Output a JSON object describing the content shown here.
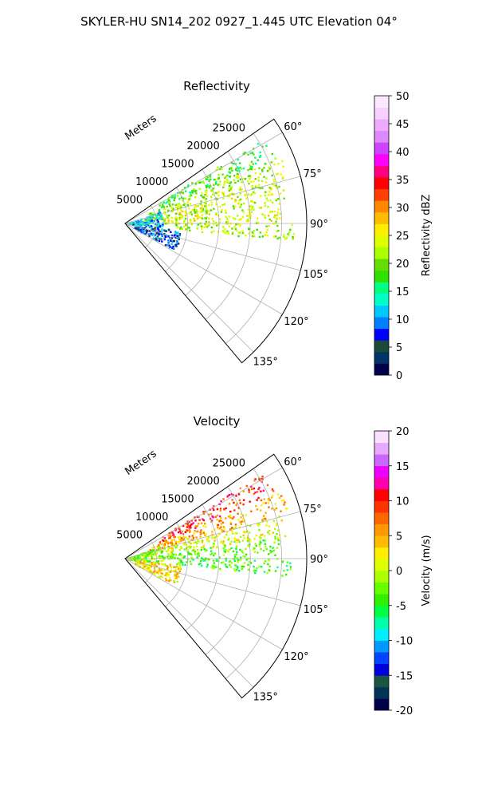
{
  "figure": {
    "title": "SKYLER-HU  SN14_202  0927_1.445 UTC Elevation 04°"
  },
  "chart_data": [
    {
      "type": "heatmap",
      "projection": "polar-sector",
      "title": "Reflectivity",
      "radial_label": "Meters",
      "radial_ticks": [
        "5000",
        "10000",
        "15000",
        "20000",
        "25000"
      ],
      "angular_ticks": [
        "60°",
        "75°",
        "90°",
        "105°",
        "120°",
        "135°"
      ],
      "theta_range_deg": [
        55,
        140
      ],
      "r_range_m": [
        0,
        29000
      ],
      "grid": true,
      "colorbar": {
        "label": "Reflectivity dBZ",
        "range": [
          0,
          50
        ],
        "ticks": [
          "0",
          "5",
          "10",
          "15",
          "20",
          "25",
          "30",
          "35",
          "40",
          "45",
          "50"
        ],
        "colors": [
          "#00004c",
          "#003366",
          "#1a4a3a",
          "#0000ff",
          "#0080ff",
          "#00c8ff",
          "#00ffc8",
          "#00ff80",
          "#30e000",
          "#66dd00",
          "#aaff00",
          "#ddff00",
          "#ffee00",
          "#ffbb00",
          "#ff8800",
          "#ff4000",
          "#ff0000",
          "#ff0080",
          "#ff00ff",
          "#cc44ff",
          "#dd88ff",
          "#eeaaff",
          "#f6d0ff",
          "#fbe8ff"
        ]
      },
      "echo_regions": [
        {
          "theta": [
            58,
            66
          ],
          "r": [
            6000,
            26000
          ],
          "value": 18
        },
        {
          "theta": [
            66,
            74
          ],
          "r": [
            4000,
            27000
          ],
          "value": 22
        },
        {
          "theta": [
            74,
            82
          ],
          "r": [
            3000,
            26000
          ],
          "value": 23
        },
        {
          "theta": [
            82,
            90
          ],
          "r": [
            6000,
            25000
          ],
          "value": 24
        },
        {
          "theta": [
            90,
            96
          ],
          "r": [
            8000,
            27000
          ],
          "value": 22
        },
        {
          "theta": [
            70,
            96
          ],
          "r": [
            500,
            6000
          ],
          "value": 12
        },
        {
          "theta": [
            96,
            118
          ],
          "r": [
            1500,
            9000
          ],
          "value": 8
        }
      ]
    },
    {
      "type": "heatmap",
      "projection": "polar-sector",
      "title": "Velocity",
      "radial_label": "Meters",
      "radial_ticks": [
        "5000",
        "10000",
        "15000",
        "20000",
        "25000"
      ],
      "angular_ticks": [
        "60°",
        "75°",
        "90°",
        "105°",
        "120°",
        "135°"
      ],
      "theta_range_deg": [
        55,
        140
      ],
      "r_range_m": [
        0,
        29000
      ],
      "grid": true,
      "colorbar": {
        "label": "Velocity (m/s)",
        "range": [
          -20,
          20
        ],
        "ticks": [
          "-20",
          "-15",
          "-10",
          "-5",
          "0",
          "5",
          "10",
          "15",
          "20"
        ],
        "colors": [
          "#00004c",
          "#003355",
          "#1a5544",
          "#0000dd",
          "#0044ff",
          "#0099ff",
          "#00eeff",
          "#00ffaa",
          "#00ff44",
          "#33ee00",
          "#66ff00",
          "#aaff00",
          "#ddff00",
          "#ffee00",
          "#ffbb00",
          "#ff9900",
          "#ff6600",
          "#ff3300",
          "#ff0000",
          "#ff00aa",
          "#ee00ff",
          "#cc66ff",
          "#e8aaff",
          "#fbe0ff"
        ]
      },
      "echo_regions": [
        {
          "theta": [
            58,
            66
          ],
          "r": [
            6000,
            26000
          ],
          "value": 9
        },
        {
          "theta": [
            66,
            74
          ],
          "r": [
            4000,
            27000
          ],
          "value": 5
        },
        {
          "theta": [
            74,
            82
          ],
          "r": [
            3000,
            26000
          ],
          "value": 1
        },
        {
          "theta": [
            82,
            90
          ],
          "r": [
            6000,
            25000
          ],
          "value": -3
        },
        {
          "theta": [
            90,
            96
          ],
          "r": [
            8000,
            27000
          ],
          "value": -4
        },
        {
          "theta": [
            70,
            96
          ],
          "r": [
            500,
            6000
          ],
          "value": -2
        },
        {
          "theta": [
            96,
            118
          ],
          "r": [
            1500,
            9000
          ],
          "value": 3
        }
      ]
    }
  ]
}
